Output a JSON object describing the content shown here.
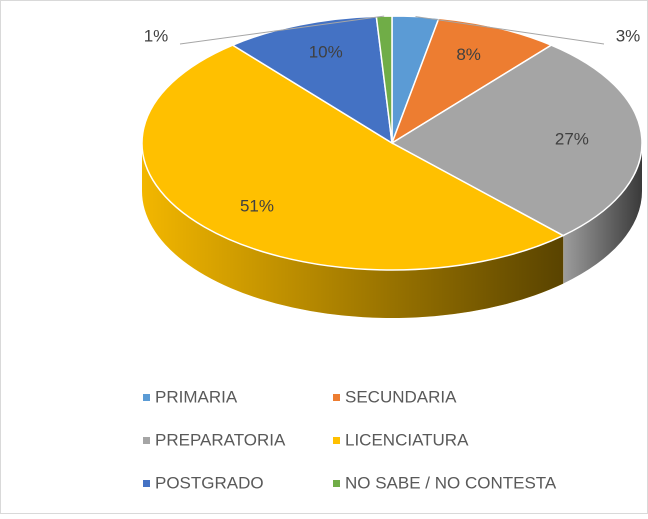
{
  "chart_data": {
    "type": "pie",
    "categories": [
      "PRIMARIA",
      "SECUNDARIA",
      "PREPARATORIA",
      "LICENCIATURA",
      "POSTGRADO",
      "NO SABE / NO CONTESTA"
    ],
    "values": [
      3,
      8,
      27,
      51,
      10,
      1
    ],
    "value_labels": [
      "3%",
      "8%",
      "27%",
      "51%",
      "10%",
      "1%"
    ],
    "colors": [
      "#5b9bd5",
      "#ed7d31",
      "#a5a5a5",
      "#ffc000",
      "#4472c4",
      "#70ad47"
    ],
    "legend": "bottom"
  }
}
